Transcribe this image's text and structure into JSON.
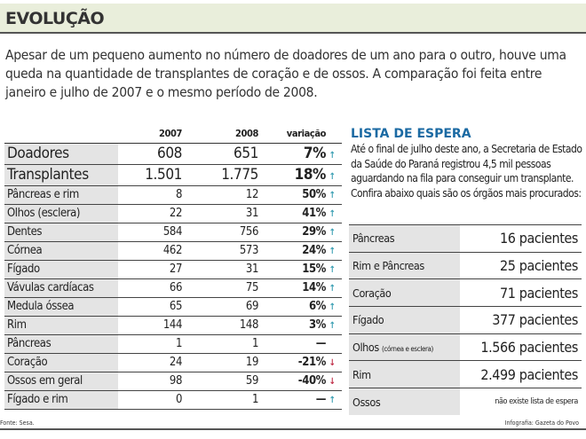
{
  "title": "EVOLUÇÃO",
  "intro": "Apesar de um pequeno aumento no número de doadores de um ano para o outro, houve uma queda na quantidade de transplantes de coração e de ossos. A comparação foi feita entre janeiro e julho de 2007 e o mesmo período de 2008.",
  "table": {
    "headers": [
      "",
      "2007",
      "2008",
      "variação"
    ],
    "rows": [
      {
        "label": "Doadores",
        "y2007": "608",
        "y2008": "651",
        "var": "7%",
        "trend": "up"
      },
      {
        "label": "Transplantes",
        "y2007": "1.501",
        "y2008": "1.775",
        "var": "18%",
        "trend": "up"
      },
      {
        "label": "Pâncreas e rim",
        "y2007": "8",
        "y2008": "12",
        "var": "50%",
        "trend": "up"
      },
      {
        "label": "Olhos (esclera)",
        "y2007": "22",
        "y2008": "31",
        "var": "41%",
        "trend": "up"
      },
      {
        "label": "Dentes",
        "y2007": "584",
        "y2008": "756",
        "var": "29%",
        "trend": "up"
      },
      {
        "label": "Córnea",
        "y2007": "462",
        "y2008": "573",
        "var": "24%",
        "trend": "up"
      },
      {
        "label": "Fígado",
        "y2007": "27",
        "y2008": "31",
        "var": "15%",
        "trend": "up"
      },
      {
        "label": "Vávulas cardíacas",
        "y2007": "66",
        "y2008": "75",
        "var": "14%",
        "trend": "up"
      },
      {
        "label": "Medula óssea",
        "y2007": "65",
        "y2008": "69",
        "var": "6%",
        "trend": "up"
      },
      {
        "label": "Rim",
        "y2007": "144",
        "y2008": "148",
        "var": "3%",
        "trend": "up"
      },
      {
        "label": "Pâncreas",
        "y2007": "1",
        "y2008": "1",
        "var": "—",
        "trend": "none"
      },
      {
        "label": "Coração",
        "y2007": "24",
        "y2008": "19",
        "var": "-21%",
        "trend": "down"
      },
      {
        "label": "Ossos em geral",
        "y2007": "98",
        "y2008": "59",
        "var": "-40%",
        "trend": "down"
      },
      {
        "label": "Fígado e rim",
        "y2007": "0",
        "y2008": "1",
        "var": "—",
        "trend": "up"
      }
    ]
  },
  "source": "Fonte: Sesa.",
  "waiting": {
    "title": "LISTA DE ESPERA",
    "text": "Até o final de julho deste ano, a Secretaria de Estado da Saúde do Paraná registrou 4,5 mil pessoas aguardando na fila para conseguir um transplante. Confira abaixo quais são os órgãos mais procurados:",
    "rows": [
      {
        "label": "Pâncreas",
        "note": "",
        "value": "16 pacientes"
      },
      {
        "label": "Rim e Pâncreas",
        "note": "",
        "value": "25 pacientes"
      },
      {
        "label": "Coração",
        "note": "",
        "value": "71 pacientes"
      },
      {
        "label": "Fígado",
        "note": "",
        "value": "377 pacientes"
      },
      {
        "label": "Olhos",
        "note": "(córnea e esclera)",
        "value": "1.566 pacientes"
      },
      {
        "label": "Rim",
        "note": "",
        "value": "2.499 pacientes"
      },
      {
        "label": "Ossos",
        "note": "",
        "value": "não existe lista de espera"
      }
    ]
  },
  "credit": "Infografia: Gazeta do Povo",
  "colors": {
    "header_bg": "#e9eedb",
    "title_blue": "#1b6aa3",
    "up_arrow": "#3a9fb3",
    "down_arrow": "#c0304a",
    "label_bg": "#e4e4e4"
  }
}
